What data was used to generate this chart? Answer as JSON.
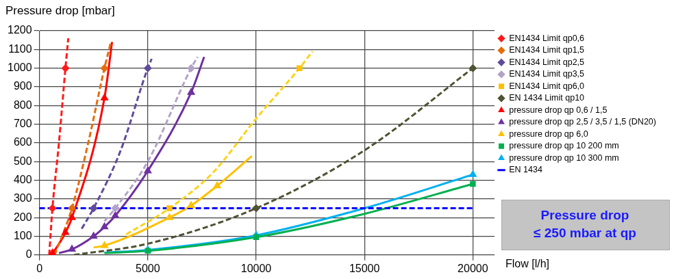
{
  "chart_data": {
    "type": "scatter",
    "ylabel": "Pressure drop [mbar]",
    "xlabel": "Flow [l/h]",
    "xlim": [
      0,
      21000
    ],
    "xticks": [
      0,
      5000,
      10000,
      15000,
      20000
    ],
    "ylim": [
      0,
      1200
    ],
    "yticks": [
      0,
      100,
      200,
      300,
      400,
      500,
      600,
      700,
      800,
      900,
      1000,
      1100,
      1200
    ],
    "grid": true,
    "legend": "right",
    "annotations": [
      "Pressure drop\n≤ 250 mbar at qp"
    ],
    "series": [
      {
        "name": "EN1434 Limit qp0,6",
        "marker": "diamond",
        "color": "#ff1a1a",
        "x": [
          600,
          1200
        ],
        "values": [
          250,
          1000
        ]
      },
      {
        "name": "EN1434 Limit qp1,5",
        "marker": "diamond",
        "color": "#e46c0a",
        "x": [
          1500,
          3000
        ],
        "values": [
          250,
          1000
        ]
      },
      {
        "name": "EN1434 Limit qp2,5",
        "marker": "diamond",
        "color": "#604a9b",
        "x": [
          2500,
          5000
        ],
        "values": [
          250,
          1000
        ]
      },
      {
        "name": "EN1434 Limit qp3,5",
        "marker": "diamond",
        "color": "#b3a2c7",
        "x": [
          3500,
          7000
        ],
        "values": [
          250,
          1000
        ]
      },
      {
        "name": "EN1434 Limit qp6,0",
        "marker": "square",
        "color": "#ffc000",
        "x": [
          6000,
          12000
        ],
        "values": [
          250,
          1000
        ]
      },
      {
        "name": "EN 1434 Limit qp10",
        "marker": "diamond",
        "color": "#4f5233",
        "x": [
          10000,
          20000
        ],
        "values": [
          250,
          1000
        ]
      },
      {
        "name": "pressure drop qp 0,6 / 1,5",
        "marker": "triangle",
        "color": "#ff0000",
        "x": [
          600,
          1200,
          1500,
          3000
        ],
        "values": [
          10,
          120,
          200,
          840
        ]
      },
      {
        "name": "pressure drop qp 2,5 / 3,5 / 1,5 (DN20)",
        "marker": "triangle",
        "color": "#7030a0",
        "x": [
          1500,
          2500,
          3000,
          3500,
          5000,
          7000
        ],
        "values": [
          30,
          100,
          150,
          210,
          450,
          870
        ]
      },
      {
        "name": "pressure drop qp 6,0",
        "marker": "triangle",
        "color": "#ffc000",
        "x": [
          3000,
          6000,
          7000,
          8200
        ],
        "values": [
          50,
          200,
          265,
          370
        ]
      },
      {
        "name": "pressure drop qp 10 200 mm",
        "marker": "square",
        "color": "#00b050",
        "x": [
          5000,
          10000,
          20000
        ],
        "values": [
          22,
          95,
          380
        ]
      },
      {
        "name": "pressure drop qp 10 300 mm",
        "marker": "triangle",
        "color": "#00b0f0",
        "x": [
          5000,
          10000,
          20000
        ],
        "values": [
          27,
          105,
          430
        ]
      },
      {
        "name": "EN 1434",
        "type": "line",
        "marker": "none",
        "line_style": "dashed",
        "color": "#0000ff",
        "x": [
          0,
          20000
        ],
        "values": [
          250,
          250
        ]
      },
      {
        "type": "line",
        "marker": "none",
        "line_style": "dashed",
        "color": "#ff1a1a",
        "x": [
          450,
          600,
          900,
          1200,
          1330
        ],
        "values": [
          0,
          250,
          600,
          1000,
          1160
        ]
      },
      {
        "type": "line",
        "marker": "none",
        "line_style": "dashed",
        "color": "#e46c0a",
        "x": [
          700,
          1500,
          2250,
          3000,
          3300
        ],
        "values": [
          0,
          250,
          600,
          1000,
          1140
        ]
      },
      {
        "type": "line",
        "marker": "none",
        "line_style": "dashed",
        "color": "#604a9b",
        "x": [
          1950,
          2500,
          3750,
          5000,
          5180
        ],
        "values": [
          140,
          250,
          560,
          1000,
          1050
        ]
      },
      {
        "type": "line",
        "marker": "none",
        "line_style": "dashed",
        "color": "#b3a2c7",
        "x": [
          3000,
          3500,
          5000,
          7000,
          7300
        ],
        "values": [
          180,
          250,
          500,
          1000,
          1060
        ]
      },
      {
        "type": "line",
        "marker": "none",
        "line_style": "dashed",
        "color": "#ffd21a",
        "x": [
          4000,
          6000,
          8000,
          10000,
          12000,
          12600
        ],
        "values": [
          110,
          250,
          440,
          730,
          1000,
          1090
        ]
      },
      {
        "type": "line",
        "marker": "none",
        "line_style": "dashed",
        "color": "#4f5233",
        "x": [
          1600,
          5000,
          10000,
          15000,
          20000
        ],
        "values": [
          0,
          60,
          250,
          560,
          1000
        ]
      },
      {
        "type": "line",
        "marker": "none",
        "line_style": "solid",
        "color": "#ff0000",
        "x": [
          500,
          600,
          1200,
          1500,
          3000,
          3350
        ],
        "values": [
          0,
          10,
          120,
          200,
          840,
          1140
        ]
      },
      {
        "type": "line",
        "marker": "none",
        "line_style": "solid",
        "color": "#7030a0",
        "x": [
          900,
          1500,
          2500,
          3000,
          3500,
          5000,
          7000,
          7600
        ],
        "values": [
          10,
          30,
          100,
          150,
          210,
          450,
          870,
          1060
        ]
      },
      {
        "type": "line",
        "marker": "none",
        "line_style": "solid",
        "color": "#ffc000",
        "x": [
          2500,
          3000,
          6000,
          7000,
          8200,
          9800
        ],
        "values": [
          40,
          50,
          200,
          265,
          370,
          530
        ]
      },
      {
        "type": "line",
        "marker": "none",
        "line_style": "solid",
        "color": "#00b050",
        "x": [
          3000,
          5000,
          10000,
          15000,
          20000
        ],
        "values": [
          10,
          22,
          95,
          220,
          380
        ]
      },
      {
        "type": "line",
        "marker": "none",
        "line_style": "solid",
        "color": "#00b0f0",
        "x": [
          3000,
          5000,
          10000,
          15000,
          20000
        ],
        "values": [
          12,
          27,
          105,
          250,
          430
        ]
      }
    ]
  }
}
